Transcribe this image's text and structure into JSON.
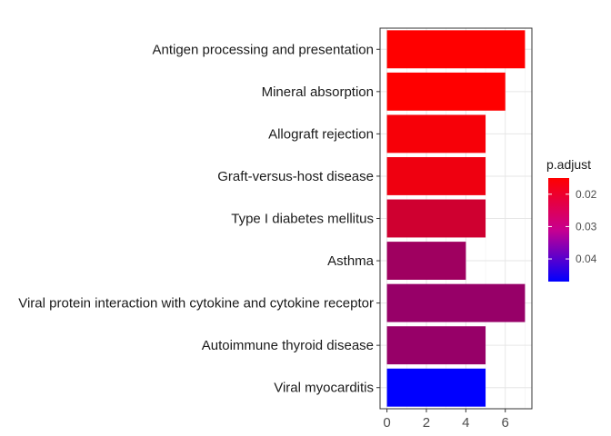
{
  "chart_data": {
    "type": "bar",
    "orientation": "horizontal",
    "title": "",
    "xlabel": "",
    "ylabel": "",
    "categories": [
      "Antigen processing and presentation",
      "Mineral absorption",
      "Allograft rejection",
      "Graft-versus-host disease",
      "Type I diabetes mellitus",
      "Asthma",
      "Viral protein interaction with cytokine and cytokine receptor",
      "Autoimmune thyroid disease",
      "Viral myocarditis"
    ],
    "values": [
      7,
      6,
      5,
      5,
      5,
      4,
      7,
      5,
      5
    ],
    "p_adjust": [
      0.015,
      0.015,
      0.016,
      0.017,
      0.021,
      0.027,
      0.028,
      0.028,
      0.047
    ],
    "xlim": [
      -0.35,
      7.35
    ],
    "x_ticks": [
      0,
      2,
      4,
      6
    ],
    "grid": true,
    "legend": {
      "title": "p.adjust",
      "placement": "right",
      "range": [
        0.015,
        0.047
      ],
      "ticks": [
        0.02,
        0.03,
        0.04
      ],
      "tick_labels": [
        "0.02",
        "0.03",
        "0.04"
      ],
      "color_low_value": "#ff0000",
      "color_high_value": "#0000ff"
    }
  }
}
